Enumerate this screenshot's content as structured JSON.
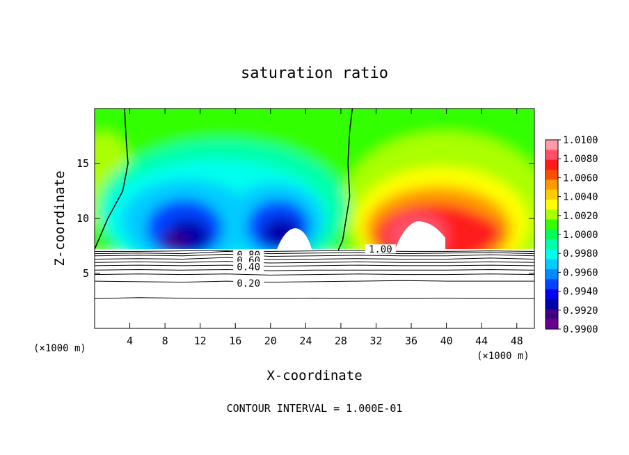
{
  "chart_data": {
    "type": "contour",
    "title": "saturation ratio",
    "xlabel": "X-coordinate",
    "ylabel": "Z-coordinate",
    "x_unit_left": "(×1000 m)",
    "x_unit_right": "(×1000 m)",
    "xlim": [
      0,
      50
    ],
    "ylim": [
      0,
      20
    ],
    "x_ticks": [
      4,
      8,
      12,
      16,
      20,
      24,
      28,
      32,
      36,
      40,
      44,
      48
    ],
    "y_ticks": [
      5,
      10,
      15
    ],
    "footer": "CONTOUR INTERVAL = 1.000E-01",
    "colorbar": {
      "min": 0.99,
      "max": 1.01,
      "tick_labels": [
        "1.0100",
        "1.0080",
        "1.0060",
        "1.0040",
        "1.0020",
        "1.0000",
        "0.9980",
        "0.9960",
        "0.9940",
        "0.9920",
        "0.9900"
      ],
      "colors": [
        "#ff9aa8",
        "#ff5068",
        "#ff1a1a",
        "#ff4d00",
        "#ff9900",
        "#ffcc00",
        "#ffff00",
        "#aaff00",
        "#33ff00",
        "#00ff55",
        "#00ffaa",
        "#00ffee",
        "#00ccff",
        "#0088ff",
        "#0044ff",
        "#0000ee",
        "#0000aa",
        "#400080",
        "#6a0090"
      ]
    },
    "contour_labels": [
      {
        "label": "1.00",
        "x": 32.5,
        "z": 7.2
      },
      {
        "label": "0.80",
        "x": 17.5,
        "z": 6.7
      },
      {
        "label": "0.60",
        "x": 17.5,
        "z": 6.2
      },
      {
        "label": "0.40",
        "x": 17.5,
        "z": 5.6
      },
      {
        "label": "0.20",
        "x": 17.5,
        "z": 4.1
      }
    ],
    "contour_lines": [
      {
        "value": 1.0,
        "z": [
          7.0,
          7.0,
          7.05,
          7.1,
          7.0,
          7.05,
          7.1,
          7.0,
          7.0,
          7.05,
          7.0
        ]
      },
      {
        "value": 0.9,
        "z": [
          6.8,
          6.85,
          6.8,
          7.0,
          6.8,
          6.85,
          6.9,
          6.8,
          6.85,
          6.9,
          6.8
        ]
      },
      {
        "value": 0.8,
        "z": [
          6.6,
          6.65,
          6.6,
          6.75,
          6.55,
          6.6,
          6.65,
          6.6,
          6.6,
          6.7,
          6.6
        ]
      },
      {
        "value": 0.7,
        "z": [
          6.3,
          6.35,
          6.3,
          6.45,
          6.25,
          6.3,
          6.35,
          6.3,
          6.3,
          6.4,
          6.3
        ]
      },
      {
        "value": 0.6,
        "z": [
          6.0,
          6.05,
          6.0,
          6.1,
          5.95,
          6.0,
          6.05,
          6.0,
          6.0,
          6.05,
          6.0
        ]
      },
      {
        "value": 0.5,
        "z": [
          5.7,
          5.75,
          5.7,
          5.75,
          5.65,
          5.7,
          5.75,
          5.7,
          5.7,
          5.75,
          5.7
        ]
      },
      {
        "value": 0.4,
        "z": [
          5.3,
          5.35,
          5.3,
          5.35,
          5.25,
          5.3,
          5.3,
          5.3,
          5.3,
          5.35,
          5.3
        ]
      },
      {
        "value": 0.3,
        "z": [
          4.9,
          4.95,
          4.9,
          4.95,
          4.85,
          4.9,
          4.95,
          4.9,
          4.9,
          4.95,
          4.9
        ]
      },
      {
        "value": 0.2,
        "z": [
          4.3,
          4.25,
          4.2,
          4.3,
          4.2,
          4.25,
          4.3,
          4.35,
          4.3,
          4.3,
          4.3
        ]
      },
      {
        "value": 0.1,
        "z": [
          2.7,
          2.8,
          2.75,
          2.7,
          2.7,
          2.75,
          2.7,
          2.7,
          2.75,
          2.7,
          2.7
        ]
      }
    ],
    "contour_lines_x": [
      0,
      5,
      10,
      15,
      20,
      25,
      30,
      35,
      40,
      45,
      50
    ],
    "boundary_1": [
      [
        3.4,
        20
      ],
      [
        3.6,
        17
      ],
      [
        3.8,
        15
      ],
      [
        3.2,
        12.5
      ],
      [
        1.5,
        10
      ],
      [
        0,
        7.2
      ]
    ],
    "boundary_2": [
      [
        29.3,
        20
      ],
      [
        29.0,
        18
      ],
      [
        28.8,
        15
      ],
      [
        29.0,
        12
      ],
      [
        28.6,
        10
      ],
      [
        28.2,
        8
      ],
      [
        27.7,
        7.1
      ]
    ]
  }
}
